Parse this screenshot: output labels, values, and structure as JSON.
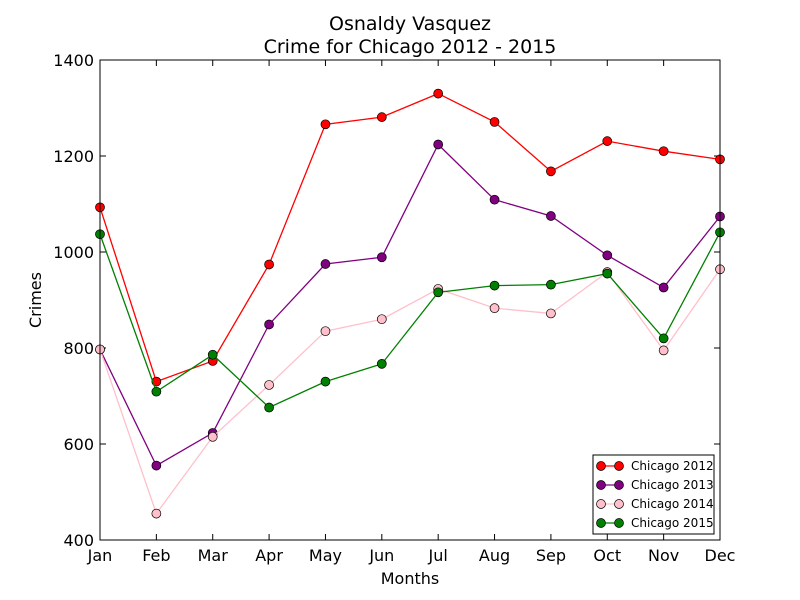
{
  "chart_data": {
    "type": "line",
    "title": "Osnaldy Vasquez",
    "subtitle": "Crime for Chicago 2012 - 2015",
    "xlabel": "Months",
    "ylabel": "Crimes",
    "categories": [
      "Jan",
      "Feb",
      "Mar",
      "Apr",
      "May",
      "Jun",
      "Jul",
      "Aug",
      "Sep",
      "Oct",
      "Nov",
      "Dec"
    ],
    "ylim": [
      400,
      1400
    ],
    "yticks": [
      400,
      600,
      800,
      1000,
      1200,
      1400
    ],
    "grid": false,
    "legend_position": "bottom-right",
    "series": [
      {
        "name": "Chicago 2012",
        "color": "#ff0000",
        "values": [
          1093,
          730,
          773,
          974,
          1266,
          1281,
          1330,
          1271,
          1168,
          1231,
          1210,
          1193
        ]
      },
      {
        "name": "Chicago 2013",
        "color": "#800080",
        "values": [
          797,
          555,
          623,
          849,
          975,
          989,
          1224,
          1109,
          1075,
          993,
          926,
          1074
        ]
      },
      {
        "name": "Chicago 2014",
        "color": "#ffc0cb",
        "values": [
          797,
          455,
          615,
          723,
          835,
          860,
          923,
          883,
          872,
          958,
          795,
          964
        ]
      },
      {
        "name": "Chicago 2015",
        "color": "#008000",
        "values": [
          1037,
          709,
          786,
          676,
          730,
          767,
          916,
          930,
          932,
          955,
          820,
          1041
        ]
      }
    ]
  }
}
